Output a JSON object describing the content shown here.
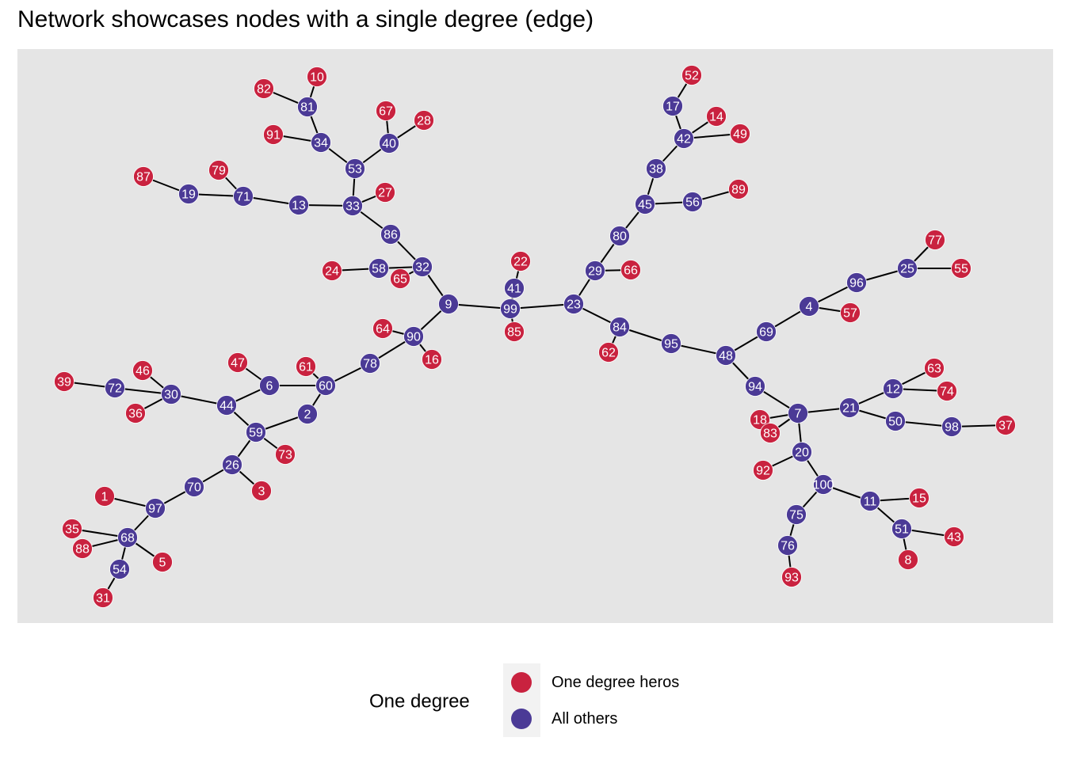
{
  "title": "Network showcases nodes with a single degree (edge)",
  "colors": {
    "one_degree": "#C9223F",
    "others": "#4B3A96",
    "panel": "#E5E5E5",
    "edge": "#000000"
  },
  "legend": {
    "title": "One degree",
    "items": [
      {
        "label": "One degree heros",
        "group": "one"
      },
      {
        "label": "All others",
        "group": "other"
      }
    ]
  },
  "nodes": [
    {
      "id": "10",
      "g": "one"
    },
    {
      "id": "82",
      "g": "one"
    },
    {
      "id": "81",
      "g": "other"
    },
    {
      "id": "67",
      "g": "one"
    },
    {
      "id": "28",
      "g": "one"
    },
    {
      "id": "91",
      "g": "one"
    },
    {
      "id": "34",
      "g": "other"
    },
    {
      "id": "40",
      "g": "other"
    },
    {
      "id": "53",
      "g": "other"
    },
    {
      "id": "87",
      "g": "one"
    },
    {
      "id": "79",
      "g": "one"
    },
    {
      "id": "19",
      "g": "other"
    },
    {
      "id": "71",
      "g": "other"
    },
    {
      "id": "13",
      "g": "other"
    },
    {
      "id": "33",
      "g": "other"
    },
    {
      "id": "27",
      "g": "one"
    },
    {
      "id": "86",
      "g": "other"
    },
    {
      "id": "24",
      "g": "one"
    },
    {
      "id": "58",
      "g": "other"
    },
    {
      "id": "65",
      "g": "one"
    },
    {
      "id": "32",
      "g": "other"
    },
    {
      "id": "9",
      "g": "other"
    },
    {
      "id": "22",
      "g": "one"
    },
    {
      "id": "41",
      "g": "other"
    },
    {
      "id": "99",
      "g": "other"
    },
    {
      "id": "85",
      "g": "one"
    },
    {
      "id": "23",
      "g": "other"
    },
    {
      "id": "64",
      "g": "one"
    },
    {
      "id": "90",
      "g": "other"
    },
    {
      "id": "16",
      "g": "one"
    },
    {
      "id": "78",
      "g": "other"
    },
    {
      "id": "47",
      "g": "one"
    },
    {
      "id": "61",
      "g": "one"
    },
    {
      "id": "6",
      "g": "other"
    },
    {
      "id": "60",
      "g": "other"
    },
    {
      "id": "46",
      "g": "one"
    },
    {
      "id": "39",
      "g": "one"
    },
    {
      "id": "72",
      "g": "other"
    },
    {
      "id": "30",
      "g": "other"
    },
    {
      "id": "36",
      "g": "one"
    },
    {
      "id": "44",
      "g": "other"
    },
    {
      "id": "2",
      "g": "other"
    },
    {
      "id": "59",
      "g": "other"
    },
    {
      "id": "73",
      "g": "one"
    },
    {
      "id": "26",
      "g": "other"
    },
    {
      "id": "3",
      "g": "one"
    },
    {
      "id": "70",
      "g": "other"
    },
    {
      "id": "1",
      "g": "one"
    },
    {
      "id": "97",
      "g": "other"
    },
    {
      "id": "35",
      "g": "one"
    },
    {
      "id": "88",
      "g": "one"
    },
    {
      "id": "68",
      "g": "other"
    },
    {
      "id": "5",
      "g": "one"
    },
    {
      "id": "54",
      "g": "other"
    },
    {
      "id": "31",
      "g": "one"
    },
    {
      "id": "52",
      "g": "one"
    },
    {
      "id": "17",
      "g": "other"
    },
    {
      "id": "14",
      "g": "one"
    },
    {
      "id": "42",
      "g": "other"
    },
    {
      "id": "49",
      "g": "one"
    },
    {
      "id": "38",
      "g": "other"
    },
    {
      "id": "89",
      "g": "one"
    },
    {
      "id": "45",
      "g": "other"
    },
    {
      "id": "56",
      "g": "other"
    },
    {
      "id": "80",
      "g": "other"
    },
    {
      "id": "29",
      "g": "other"
    },
    {
      "id": "66",
      "g": "one"
    },
    {
      "id": "84",
      "g": "other"
    },
    {
      "id": "62",
      "g": "one"
    },
    {
      "id": "95",
      "g": "other"
    },
    {
      "id": "48",
      "g": "other"
    },
    {
      "id": "77",
      "g": "one"
    },
    {
      "id": "25",
      "g": "other"
    },
    {
      "id": "55",
      "g": "one"
    },
    {
      "id": "96",
      "g": "other"
    },
    {
      "id": "4",
      "g": "other"
    },
    {
      "id": "57",
      "g": "one"
    },
    {
      "id": "69",
      "g": "other"
    },
    {
      "id": "94",
      "g": "other"
    },
    {
      "id": "63",
      "g": "one"
    },
    {
      "id": "12",
      "g": "other"
    },
    {
      "id": "74",
      "g": "one"
    },
    {
      "id": "21",
      "g": "other"
    },
    {
      "id": "7",
      "g": "other"
    },
    {
      "id": "18",
      "g": "one"
    },
    {
      "id": "83",
      "g": "one"
    },
    {
      "id": "50",
      "g": "other"
    },
    {
      "id": "98",
      "g": "other"
    },
    {
      "id": "37",
      "g": "one"
    },
    {
      "id": "20",
      "g": "other"
    },
    {
      "id": "92",
      "g": "one"
    },
    {
      "id": "100",
      "g": "other"
    },
    {
      "id": "11",
      "g": "other"
    },
    {
      "id": "15",
      "g": "one"
    },
    {
      "id": "75",
      "g": "other"
    },
    {
      "id": "51",
      "g": "other"
    },
    {
      "id": "43",
      "g": "one"
    },
    {
      "id": "76",
      "g": "other"
    },
    {
      "id": "8",
      "g": "one"
    },
    {
      "id": "93",
      "g": "one"
    }
  ],
  "edges": [
    [
      "10",
      "81"
    ],
    [
      "82",
      "81"
    ],
    [
      "81",
      "34"
    ],
    [
      "91",
      "34"
    ],
    [
      "34",
      "53"
    ],
    [
      "67",
      "40"
    ],
    [
      "28",
      "40"
    ],
    [
      "40",
      "53"
    ],
    [
      "53",
      "33"
    ],
    [
      "87",
      "19"
    ],
    [
      "19",
      "71"
    ],
    [
      "79",
      "71"
    ],
    [
      "71",
      "13"
    ],
    [
      "13",
      "33"
    ],
    [
      "27",
      "33"
    ],
    [
      "33",
      "86"
    ],
    [
      "86",
      "32"
    ],
    [
      "24",
      "58"
    ],
    [
      "58",
      "32"
    ],
    [
      "65",
      "32"
    ],
    [
      "32",
      "9"
    ],
    [
      "9",
      "99"
    ],
    [
      "22",
      "41"
    ],
    [
      "41",
      "99"
    ],
    [
      "85",
      "99"
    ],
    [
      "99",
      "23"
    ],
    [
      "9",
      "90"
    ],
    [
      "64",
      "90"
    ],
    [
      "16",
      "90"
    ],
    [
      "90",
      "78"
    ],
    [
      "78",
      "60"
    ],
    [
      "61",
      "60"
    ],
    [
      "6",
      "60"
    ],
    [
      "47",
      "6"
    ],
    [
      "6",
      "44"
    ],
    [
      "60",
      "2"
    ],
    [
      "2",
      "59"
    ],
    [
      "44",
      "59"
    ],
    [
      "44",
      "30"
    ],
    [
      "46",
      "30"
    ],
    [
      "36",
      "30"
    ],
    [
      "72",
      "30"
    ],
    [
      "39",
      "72"
    ],
    [
      "59",
      "73"
    ],
    [
      "59",
      "26"
    ],
    [
      "26",
      "3"
    ],
    [
      "26",
      "70"
    ],
    [
      "70",
      "97"
    ],
    [
      "1",
      "97"
    ],
    [
      "97",
      "68"
    ],
    [
      "35",
      "68"
    ],
    [
      "88",
      "68"
    ],
    [
      "68",
      "5"
    ],
    [
      "68",
      "54"
    ],
    [
      "54",
      "31"
    ],
    [
      "52",
      "17"
    ],
    [
      "17",
      "42"
    ],
    [
      "14",
      "42"
    ],
    [
      "42",
      "49"
    ],
    [
      "42",
      "38"
    ],
    [
      "38",
      "45"
    ],
    [
      "45",
      "56"
    ],
    [
      "56",
      "89"
    ],
    [
      "45",
      "80"
    ],
    [
      "80",
      "29"
    ],
    [
      "29",
      "66"
    ],
    [
      "29",
      "23"
    ],
    [
      "23",
      "84"
    ],
    [
      "84",
      "62"
    ],
    [
      "84",
      "95"
    ],
    [
      "95",
      "48"
    ],
    [
      "48",
      "69"
    ],
    [
      "69",
      "4"
    ],
    [
      "4",
      "57"
    ],
    [
      "4",
      "96"
    ],
    [
      "96",
      "25"
    ],
    [
      "25",
      "77"
    ],
    [
      "25",
      "55"
    ],
    [
      "48",
      "94"
    ],
    [
      "94",
      "7"
    ],
    [
      "18",
      "7"
    ],
    [
      "83",
      "7"
    ],
    [
      "7",
      "21"
    ],
    [
      "21",
      "12"
    ],
    [
      "12",
      "63"
    ],
    [
      "12",
      "74"
    ],
    [
      "21",
      "50"
    ],
    [
      "50",
      "98"
    ],
    [
      "98",
      "37"
    ],
    [
      "7",
      "20"
    ],
    [
      "20",
      "92"
    ],
    [
      "20",
      "100"
    ],
    [
      "100",
      "11"
    ],
    [
      "11",
      "15"
    ],
    [
      "11",
      "51"
    ],
    [
      "51",
      "43"
    ],
    [
      "51",
      "8"
    ],
    [
      "100",
      "75"
    ],
    [
      "75",
      "76"
    ],
    [
      "76",
      "93"
    ]
  ]
}
